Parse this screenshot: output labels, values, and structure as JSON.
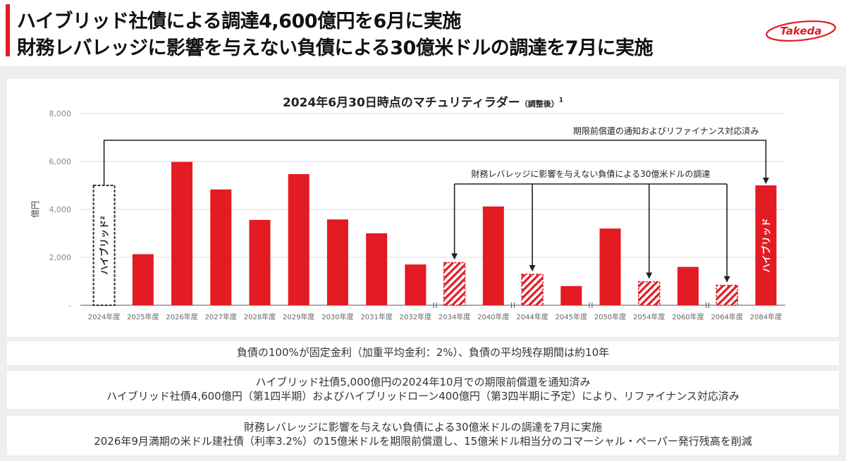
{
  "header": {
    "title_line1": "ハイブリッド社債による調達4,600億円を6月に実施",
    "title_line2": "財務レバレッジに影響を与えない負債による30億米ドルの調達を7月に実施",
    "logo_text": "Takeda",
    "accent_color": "#e31b23"
  },
  "chart_data": {
    "type": "bar",
    "title": "2024年6月30日時点のマチュリティラダー",
    "title_note": "（調整後）",
    "title_footnote": "1",
    "ylabel": "億円",
    "ylim": [
      0,
      8000
    ],
    "yticks": [
      {
        "value": 0,
        "label": "-"
      },
      {
        "value": 2000,
        "label": "2,000"
      },
      {
        "value": 4000,
        "label": "4,000"
      },
      {
        "value": 6000,
        "label": "6,000"
      },
      {
        "value": 8000,
        "label": "8,000"
      }
    ],
    "bars": [
      {
        "category": "2024年度",
        "value": 5000,
        "style": "outline",
        "label": "ハイブリッド²"
      },
      {
        "category": "2025年度",
        "value": 2130,
        "style": "solid"
      },
      {
        "category": "2026年度",
        "value": 5980,
        "style": "solid"
      },
      {
        "category": "2027年度",
        "value": 4830,
        "style": "solid"
      },
      {
        "category": "2028年度",
        "value": 3560,
        "style": "solid"
      },
      {
        "category": "2029年度",
        "value": 5470,
        "style": "solid"
      },
      {
        "category": "2030年度",
        "value": 3580,
        "style": "solid"
      },
      {
        "category": "2031年度",
        "value": 3000,
        "style": "solid"
      },
      {
        "category": "2032年度",
        "value": 1700,
        "style": "solid"
      },
      {
        "category": "2034年度",
        "value": 1780,
        "style": "hatched"
      },
      {
        "category": "2040年度",
        "value": 4120,
        "style": "solid"
      },
      {
        "category": "2044年度",
        "value": 1290,
        "style": "hatched"
      },
      {
        "category": "2045年度",
        "value": 800,
        "style": "solid"
      },
      {
        "category": "2050年度",
        "value": 3200,
        "style": "solid"
      },
      {
        "category": "2054年度",
        "value": 980,
        "style": "hatched"
      },
      {
        "category": "2060年度",
        "value": 1600,
        "style": "solid"
      },
      {
        "category": "2064年度",
        "value": 830,
        "style": "hatched"
      },
      {
        "category": "2084年度",
        "value": 5000,
        "style": "solid",
        "label": "ハイブリッド"
      }
    ],
    "axis_breaks_after": [
      "2032年度",
      "2040年度",
      "2045年度",
      "2060年度"
    ],
    "annotations": [
      {
        "text": "期限前償還の通知およびリファイナンス対応済み",
        "from": "2024年度",
        "to": "2084年度"
      },
      {
        "text": "財務レバレッジに影響を与えない負債による30億米ドルの調達",
        "to": [
          "2034年度",
          "2044年度",
          "2054年度",
          "2064年度"
        ]
      }
    ],
    "grid": true,
    "colors": {
      "bar": "#e31b23",
      "outline": "#333333",
      "grid": "#dddddd",
      "axis_text": "#8a8a8a"
    }
  },
  "notes": {
    "box1": "負債の100%が固定金利（加重平均金利：2%）、負債の平均残存期間は約10年",
    "box2_line1": "ハイブリッド社債5,000億円の2024年10月での期限前償還を通知済み",
    "box2_line2": "ハイブリッド社債4,600億円（第1四半期）およびハイブリッドローン400億円（第3四半期に予定）により、リファイナンス対応済み",
    "box3_line1": "財務レバレッジに影響を与えない負債による30億米ドルの調達を7月に実施",
    "box3_line2": "2026年9月満期の米ドル建社債（利率3.2%）の15億米ドルを期限前償還し、15億米ドル相当分のコマーシャル・ペーパー発行残高を削減"
  }
}
